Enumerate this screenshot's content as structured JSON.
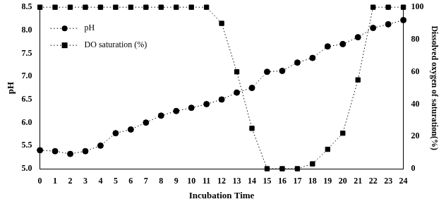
{
  "chart_data": {
    "type": "line",
    "xlabel": "Incubation Time",
    "ylabel": "pH",
    "y2label": "Dissolved oxygen of saturation(%)",
    "categories": [
      0,
      1,
      2,
      3,
      4,
      5,
      6,
      7,
      8,
      9,
      10,
      11,
      12,
      13,
      14,
      15,
      16,
      17,
      18,
      19,
      20,
      21,
      22,
      23,
      24
    ],
    "ylim": [
      5,
      8.5
    ],
    "yticks": [
      {
        "value": 5,
        "label": "5.0"
      },
      5.5,
      {
        "value": 6,
        "label": "6.0"
      },
      6.5,
      {
        "value": 7,
        "label": "7.0"
      },
      7.5,
      {
        "value": 8,
        "label": "8.0"
      },
      8.5
    ],
    "y2lim": [
      0,
      100
    ],
    "y2ticks": [
      0,
      20,
      40,
      60,
      80,
      100
    ],
    "grid": false,
    "legend": "upper left",
    "series": [
      {
        "name": "pH",
        "color": "#000000",
        "marker": "circle",
        "line_style": "dotted",
        "values": [
          5.4,
          5.38,
          5.32,
          5.38,
          5.5,
          5.77,
          5.85,
          6.0,
          6.15,
          6.25,
          6.32,
          6.4,
          6.5,
          6.65,
          6.75,
          7.1,
          7.12,
          7.3,
          7.4,
          7.65,
          7.7,
          7.85,
          8.05,
          8.13,
          8.22
        ]
      },
      {
        "name": "DO saturation (%)",
        "color": "#000000",
        "marker": "square",
        "line_style": "dotted",
        "axis": "y2",
        "values": [
          100,
          100,
          100,
          100,
          100,
          100,
          100,
          100,
          100,
          100,
          100,
          100,
          90,
          60,
          25,
          0,
          0,
          0,
          3,
          12,
          22,
          55,
          100,
          100,
          100
        ]
      }
    ]
  }
}
